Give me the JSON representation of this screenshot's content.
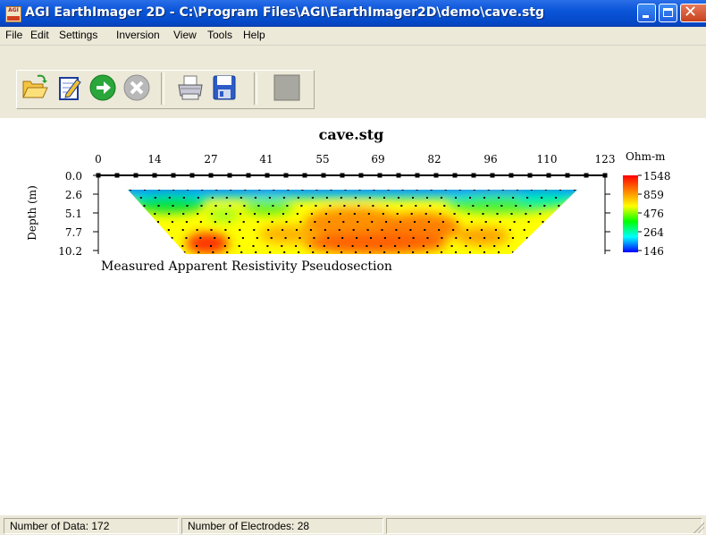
{
  "window": {
    "title": "AGI EarthImager 2D - C:\\Program Files\\AGI\\EarthImager2D\\demo\\cave.stg",
    "icon_text": "AGI"
  },
  "menu": {
    "items": [
      "File",
      "Edit",
      "Settings",
      "Inversion",
      "View",
      "Tools",
      "Help"
    ]
  },
  "toolbar": {
    "buttons": [
      "open-folder-icon",
      "edit-document-icon",
      "run-forward-icon",
      "cancel-icon",
      "print-icon",
      "save-disk-icon",
      "stop-square-icon"
    ]
  },
  "plot": {
    "title": "cave.stg",
    "x_ticks": [
      "0",
      "14",
      "27",
      "41",
      "55",
      "69",
      "82",
      "96",
      "110",
      "123"
    ],
    "depth_ticks": [
      "0.0",
      "2.6",
      "5.1",
      "7.7",
      "10.2"
    ],
    "ylabel": "Depth (m)",
    "caption": "Measured Apparent Resistivity Pseudosection",
    "colorbar_unit": "Ohm-m",
    "colorbar_ticks": [
      "1548",
      "859",
      "476",
      "264",
      "146"
    ],
    "colors": [
      "#ff0000",
      "#ff8000",
      "#ffff00",
      "#00ff00",
      "#00ffff",
      "#0000ff"
    ]
  },
  "status": {
    "data_count": "Number of Data: 172",
    "electrodes": "Number of Electrodes: 28"
  }
}
